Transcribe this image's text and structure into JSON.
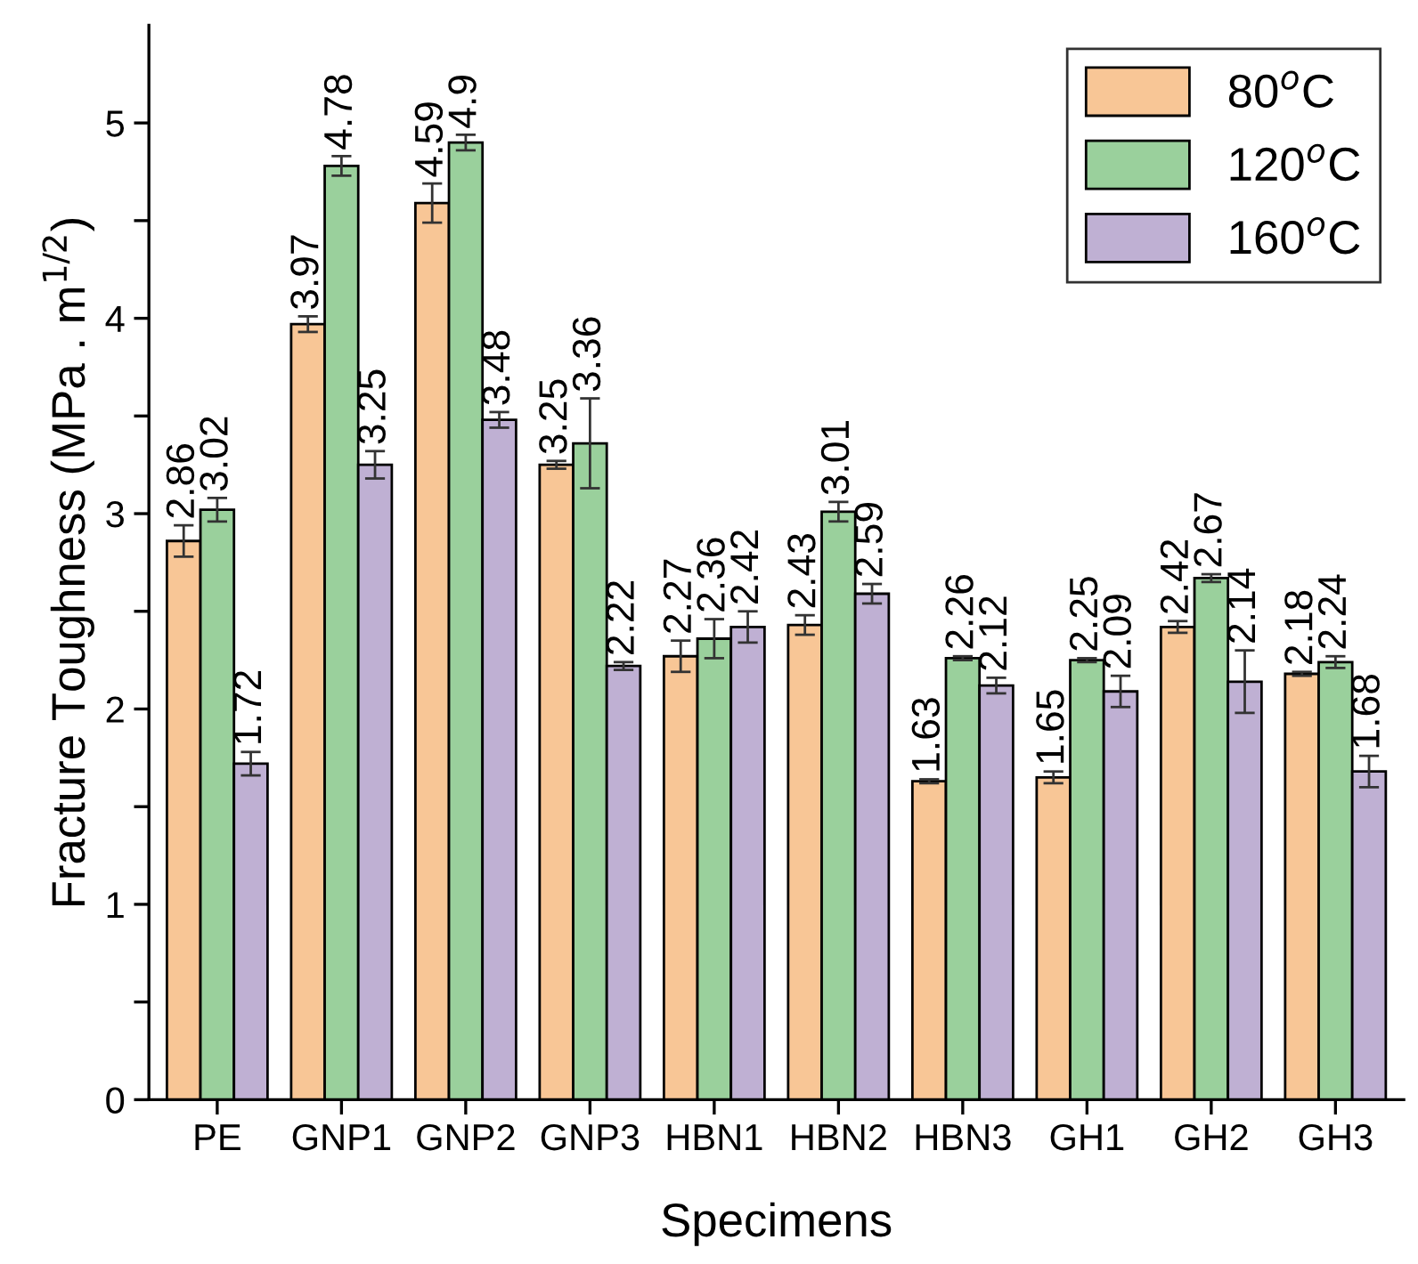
{
  "chart_data": {
    "type": "bar",
    "xlabel": "Specimens",
    "ylabel": "Fracture Toughness (MPa . m$^{1/2}$)",
    "categories": [
      "PE",
      "GNP1",
      "GNP2",
      "GNP3",
      "HBN1",
      "HBN2",
      "HBN3",
      "GH1",
      "GH2",
      "GH3"
    ],
    "series": [
      {
        "name": "80$^{o}$C",
        "color": "#f8c696",
        "values": [
          2.86,
          3.97,
          4.59,
          3.25,
          2.27,
          2.43,
          1.63,
          1.65,
          2.42,
          2.18
        ],
        "errors": [
          0.08,
          0.04,
          0.1,
          0.02,
          0.08,
          0.05,
          0.01,
          0.03,
          0.03,
          0.01
        ]
      },
      {
        "name": "120$^{o}$C",
        "color": "#9ad09c",
        "values": [
          3.02,
          4.78,
          4.9,
          3.36,
          2.36,
          3.01,
          2.26,
          2.25,
          2.67,
          2.24
        ],
        "errors": [
          0.06,
          0.05,
          0.04,
          0.23,
          0.1,
          0.05,
          0.01,
          0.01,
          0.02,
          0.03
        ]
      },
      {
        "name": "160$^{o}$C",
        "color": "#bfb0d3",
        "values": [
          1.72,
          3.25,
          3.48,
          2.22,
          2.42,
          2.59,
          2.12,
          2.09,
          2.14,
          1.68
        ],
        "errors": [
          0.06,
          0.07,
          0.04,
          0.02,
          0.08,
          0.05,
          0.04,
          0.08,
          0.16,
          0.08
        ]
      }
    ],
    "ylim": [
      0,
      5.5
    ],
    "yticks": [
      0,
      {
        "value": 0.5,
        "label": null
      },
      1,
      {
        "value": 1.5,
        "label": null
      },
      2,
      {
        "value": 2.5,
        "label": null
      },
      3,
      {
        "value": 3.5,
        "label": null
      },
      4,
      {
        "value": 4.5,
        "label": null
      },
      5
    ],
    "data_labels": true,
    "legend": "top right",
    "grid": false
  }
}
